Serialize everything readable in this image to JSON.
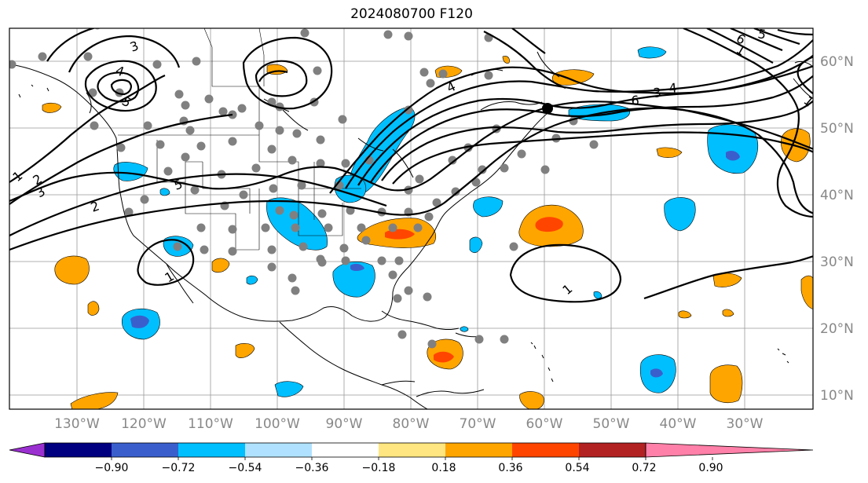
{
  "title": "2024080700 F120",
  "lon_labels": [
    "130°W",
    "120°W",
    "110°W",
    "100°W",
    "90°W",
    "80°W",
    "70°W",
    "60°W",
    "50°W",
    "40°W",
    "30°W"
  ],
  "lat_labels": [
    "60°N",
    "50°N",
    "40°N",
    "30°N",
    "20°N",
    "10°N"
  ],
  "colorbar": {
    "ticks": [
      "−0.90",
      "−0.72",
      "−0.54",
      "−0.36",
      "−0.18",
      "0.18",
      "0.36",
      "0.54",
      "0.72",
      "0.90"
    ],
    "colors": [
      "#9b30d0",
      "#000080",
      "#3a5fcd",
      "#00bfff",
      "#b0e2ff",
      "#ffffff",
      "#ffe680",
      "#ffa500",
      "#ff4500",
      "#b22222",
      "#ff80a8"
    ]
  },
  "contour_labels": [
    "3",
    "4",
    "5",
    "2",
    "1",
    "3",
    "2",
    "4",
    "5",
    "6",
    "3",
    "4",
    "5",
    "6",
    "1",
    "1"
  ],
  "styles": {
    "positive_fill": "#ffa500",
    "positive_core": "#ff4500",
    "negative_fill": "#00bfff",
    "negative_core": "#3a5fcd",
    "station": "#808080"
  }
}
